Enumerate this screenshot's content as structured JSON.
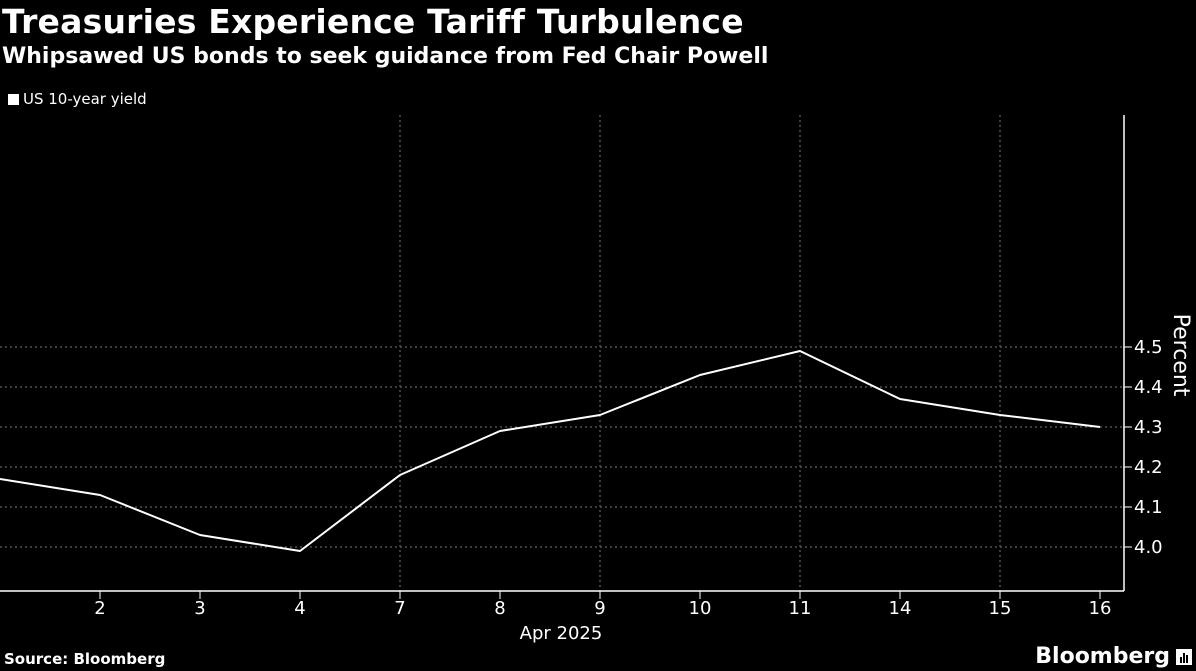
{
  "header": {
    "title": "Treasuries Experience Tariff Turbulence",
    "subtitle": "Whipsawed US bonds to seek guidance from Fed Chair Powell"
  },
  "legend": {
    "label": "US 10-year yield"
  },
  "footer": {
    "source": "Source: Bloomberg",
    "brand": "Bloomberg"
  },
  "colors": {
    "background": "#000000",
    "line": "#ffffff",
    "grid": "#777777"
  },
  "chart_data": {
    "type": "line",
    "title": "Treasuries Experience Tariff Turbulence",
    "subtitle": "Whipsawed US bonds to seek guidance from Fed Chair Powell",
    "x_categories": [
      "2025-04-01",
      "2",
      "3",
      "4",
      "7",
      "8",
      "9",
      "10",
      "11",
      "14",
      "15",
      "16"
    ],
    "x_tick_labels": [
      "",
      "2",
      "3",
      "4",
      "7",
      "8",
      "9",
      "10",
      "11",
      "14",
      "15",
      "16"
    ],
    "x_axis_caption": "Apr 2025",
    "series": [
      {
        "name": "US 10-year yield",
        "values": [
          4.17,
          4.13,
          4.03,
          3.99,
          4.18,
          4.29,
          4.33,
          4.43,
          4.49,
          4.37,
          4.33,
          4.3
        ]
      }
    ],
    "ylabel": "Percent",
    "ylim": [
      3.95,
      4.53
    ],
    "yticks": [
      "4.0",
      "4.1",
      "4.2",
      "4.3",
      "4.4",
      "4.5"
    ],
    "grid": true,
    "legend_position": "top-left"
  }
}
